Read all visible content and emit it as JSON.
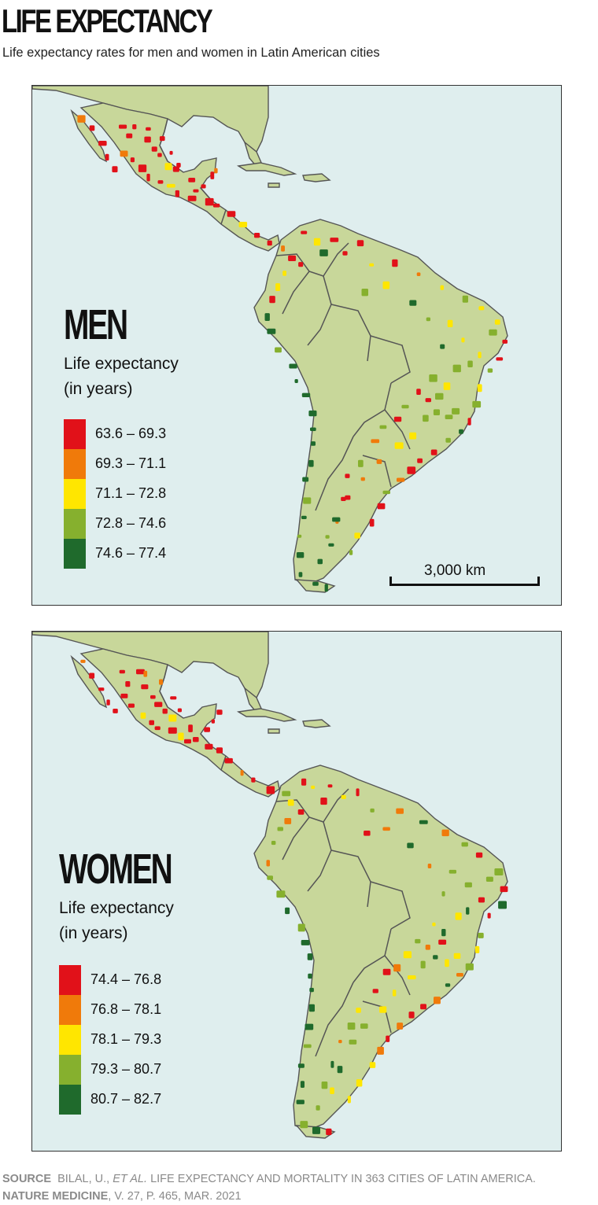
{
  "title": "LIFE EXPECTANCY",
  "subtitle": "Life expectancy rates for men and women in Latin American cities",
  "colors": {
    "ocean": "#dfeeee",
    "land": "#c8d79a",
    "border": "#555555",
    "classes": [
      "#e11119",
      "#f07a0a",
      "#ffe600",
      "#86b02e",
      "#1f6a2c"
    ]
  },
  "maps": [
    {
      "heading": "MEN",
      "legend_title": "Life expectancy\n(in years)",
      "classes": [
        {
          "label": "63.6 – 69.3"
        },
        {
          "label": "69.3 – 71.1"
        },
        {
          "label": "71.1 – 72.8"
        },
        {
          "label": "72.8 – 74.6"
        },
        {
          "label": "74.6 – 77.4"
        }
      ],
      "scale_label": "3,000 km"
    },
    {
      "heading": "WOMEN",
      "legend_title": "Life expectancy\n(in years)",
      "classes": [
        {
          "label": "74.4 – 76.8"
        },
        {
          "label": "76.8 – 78.1"
        },
        {
          "label": "78.1 – 79.3"
        },
        {
          "label": "79.3 – 80.7"
        },
        {
          "label": "80.7 – 82.7"
        }
      ]
    }
  ],
  "source": {
    "label": "SOURCE",
    "authors": "BILAL, U.,",
    "etal": "ET AL.",
    "text1": "LIFE EXPECTANCY AND MORTALITY IN 363 CITIES OF LATIN AMERICA.",
    "journal": "NATURE MEDICINE",
    "text2": ", V. 27, P.  465, MAR. 2021"
  }
}
